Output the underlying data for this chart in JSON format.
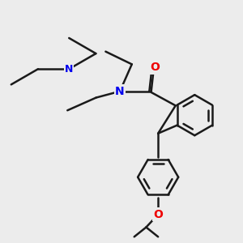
{
  "background_color": "#ececec",
  "bond_color": "#1a1a1a",
  "N_color": "#0000ee",
  "O_color": "#ee0000",
  "line_width": 1.8,
  "fig_size": [
    3.0,
    3.0
  ],
  "dpi": 100,
  "xlim": [
    0,
    10
  ],
  "ylim": [
    0,
    10
  ]
}
